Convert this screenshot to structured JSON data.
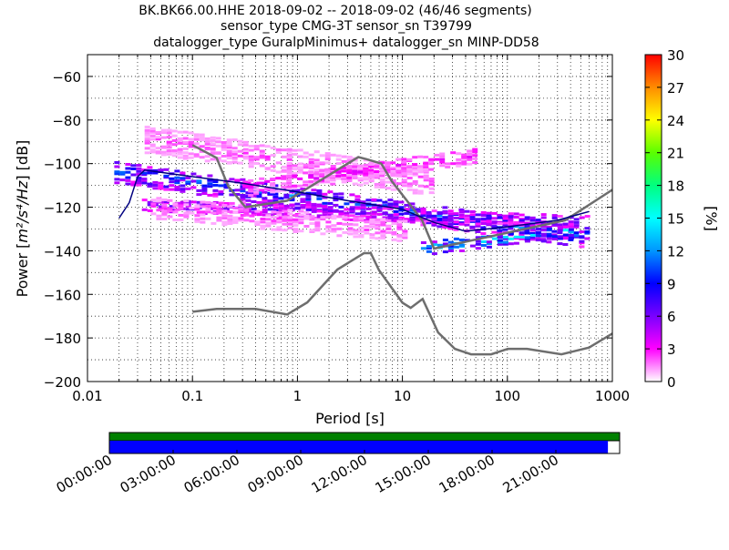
{
  "chart_data": [
    {
      "type": "heatmap",
      "title_lines": [
        "BK.BK66.00.HHE   2018-09-02 -- 2018-09-02  (46/46 segments)",
        "sensor_type CMG-3T sensor_sn T39799",
        "datalogger_type GuralpMinimus+ datalogger_sn MINP-DD58"
      ],
      "xlabel": "Period [s]",
      "ylabel_prefix": "Power [",
      "ylabel_units": "m²/s⁴/Hz",
      "ylabel_suffix": "] [dB]",
      "x_scale": "log",
      "xlim": [
        0.01,
        1000
      ],
      "ylim": [
        -200,
        -50
      ],
      "xticks": [
        0.01,
        0.1,
        1,
        10,
        100,
        1000
      ],
      "xtick_labels": [
        "0.01",
        "0.1",
        "1",
        "10",
        "100",
        "1000"
      ],
      "yticks": [
        -60,
        -80,
        -100,
        -120,
        -140,
        -160,
        -180,
        -200
      ],
      "ytick_labels": [
        "−60",
        "−80",
        "−100",
        "−120",
        "−140",
        "−160",
        "−180",
        "−200"
      ],
      "grid": true,
      "colorbar": {
        "label": "[%]",
        "range": [
          0,
          30
        ],
        "ticks": [
          0,
          3,
          6,
          9,
          12,
          15,
          18,
          21,
          24,
          27,
          30
        ],
        "tick_labels": [
          "0",
          "3",
          "6",
          "9",
          "12",
          "15",
          "18",
          "21",
          "24",
          "27",
          "30"
        ],
        "colors": [
          "#ffffff",
          "#ff00ff",
          "#7a00ff",
          "#0000ff",
          "#0096ff",
          "#00ffff",
          "#00ff7f",
          "#5aff00",
          "#ffff00",
          "#ff8c00",
          "#ff0000"
        ]
      },
      "series": [
        {
          "role": "high noise model",
          "color": "#6e6e6e",
          "x": [
            0.1,
            0.17,
            0.22,
            0.32,
            0.8,
            3.8,
            4.6,
            6.3,
            7.9,
            15.4,
            20,
            354.8,
            1000
          ],
          "y": [
            -91.5,
            -97.4,
            -110.5,
            -120,
            -117,
            -97,
            -98,
            -100,
            -108,
            -126,
            -139,
            -126,
            -112
          ]
        },
        {
          "role": "low noise model",
          "color": "#6e6e6e",
          "x": [
            0.1,
            0.17,
            0.4,
            0.8,
            1.24,
            2.4,
            4.3,
            5.0,
            6.0,
            10.0,
            12.0,
            15.6,
            21.9,
            31.6,
            45.0,
            70.0,
            101.0,
            154.0,
            328.0,
            600.0,
            1000.0
          ],
          "y": [
            -168,
            -166.7,
            -166.7,
            -169.2,
            -163.7,
            -148.6,
            -141.1,
            -141.1,
            -149,
            -163.8,
            -166.2,
            -162.1,
            -177.5,
            -185,
            -187.5,
            -187.5,
            -185,
            -185,
            -187.5,
            -184.4,
            -178
          ]
        },
        {
          "role": "mode",
          "color": "#000080",
          "x": [
            0.02,
            0.025,
            0.03,
            0.035,
            0.05,
            0.1,
            0.3,
            1,
            3,
            10,
            20,
            40,
            100,
            300,
            600
          ],
          "y": [
            -125,
            -118,
            -106,
            -103,
            -104,
            -106,
            -109,
            -113,
            -117,
            -121,
            -127,
            -131,
            -129,
            -126,
            -122
          ]
        }
      ],
      "density_bands": [
        {
          "x_start": 0.018,
          "x_end": 600,
          "y_start": -103,
          "y_end": -133,
          "half_width": 5,
          "level": 9
        },
        {
          "x_start": 0.033,
          "x_end": 550,
          "y_start": -118,
          "y_end": -126,
          "half_width": 3,
          "level": 6
        },
        {
          "x_start": 0.035,
          "x_end": 20,
          "y_start": -88,
          "y_end": -108,
          "half_width": 6,
          "level": 2
        },
        {
          "x_start": 0.04,
          "x_end": 10,
          "y_start": -119,
          "y_end": -130,
          "half_width": 5,
          "level": 2
        },
        {
          "x_start": 0.3,
          "x_end": 50,
          "y_start": -110,
          "y_end": -95,
          "half_width": 4,
          "level": 3
        },
        {
          "x_start": 15,
          "x_end": 400,
          "y_start": -138,
          "y_end": -130,
          "half_width": 3,
          "level": 12
        }
      ]
    },
    {
      "type": "timeline",
      "xtick_labels": [
        "00:00:00",
        "03:00:00",
        "06:00:00",
        "09:00:00",
        "12:00:00",
        "15:00:00",
        "18:00:00",
        "21:00:00"
      ],
      "bars": [
        {
          "role": "data availability",
          "color": "#008000",
          "start_fraction": 0,
          "end_fraction": 1
        },
        {
          "role": "segments used",
          "color": "#0000ff",
          "start_fraction": 0,
          "end_fraction": 0.977
        }
      ]
    }
  ]
}
